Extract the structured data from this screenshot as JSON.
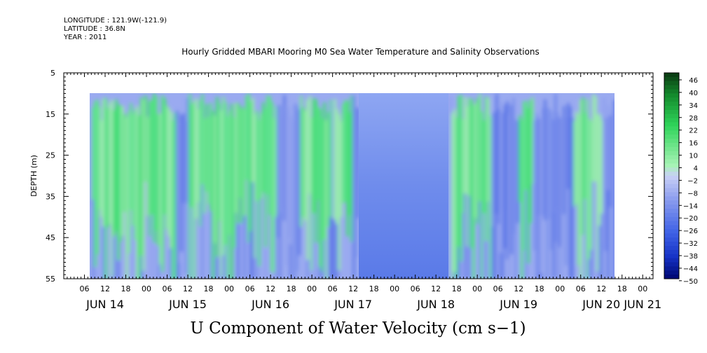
{
  "header": {
    "longitude": "LONGITUDE : 121.9W(-121.9)",
    "latitude": "LATITUDE : 36.8N",
    "year": "YEAR : 2011",
    "title": "Hourly Gridded MBARI Mooring M0 Sea Water Temperature and Salinity Observations"
  },
  "chart_data": {
    "type": "heatmap",
    "title": "Hourly Gridded MBARI Mooring M0 Sea Water Temperature and Salinity Observations",
    "xlabel": "U Component of Water Velocity (cm s−1)",
    "ylabel": "DEPTH (m)",
    "y_axis": {
      "ticks": [
        5,
        15,
        25,
        35,
        45,
        55
      ],
      "range": [
        5,
        55
      ],
      "inverted": true
    },
    "x_axis": {
      "hour_ticks": [
        "06",
        "12",
        "18",
        "00",
        "06",
        "12",
        "18",
        "00",
        "06",
        "12",
        "18",
        "00",
        "06",
        "12",
        "18",
        "00",
        "06",
        "12",
        "18",
        "00",
        "06",
        "12",
        "18",
        "00",
        "06",
        "12",
        "18",
        "00"
      ],
      "day_labels": [
        "JUN 14",
        "JUN 15",
        "JUN 16",
        "JUN 17",
        "JUN 18",
        "JUN 19",
        "JUN 20",
        "JUN 21"
      ],
      "range": [
        "JUN 14 00:00",
        "JUN 21 03:00"
      ]
    },
    "data_extent": {
      "time_start": "JUN 14 10:00",
      "time_end": "JUN 20 16:00",
      "depth_top": 10,
      "depth_bottom": 55
    },
    "colorbar": {
      "labels": [
        "46",
        "40",
        "34",
        "28",
        "22",
        "16",
        "10",
        "4",
        "−2",
        "−8",
        "−14",
        "−20",
        "−26",
        "−32",
        "−38",
        "−44",
        "−50"
      ],
      "min": -50,
      "max": 50
    },
    "colors": {
      "positive": "#33dd66",
      "weak": "#aab8f2",
      "negative": "#4466ee",
      "strong_negative": "#1133cc"
    },
    "grid": false
  }
}
